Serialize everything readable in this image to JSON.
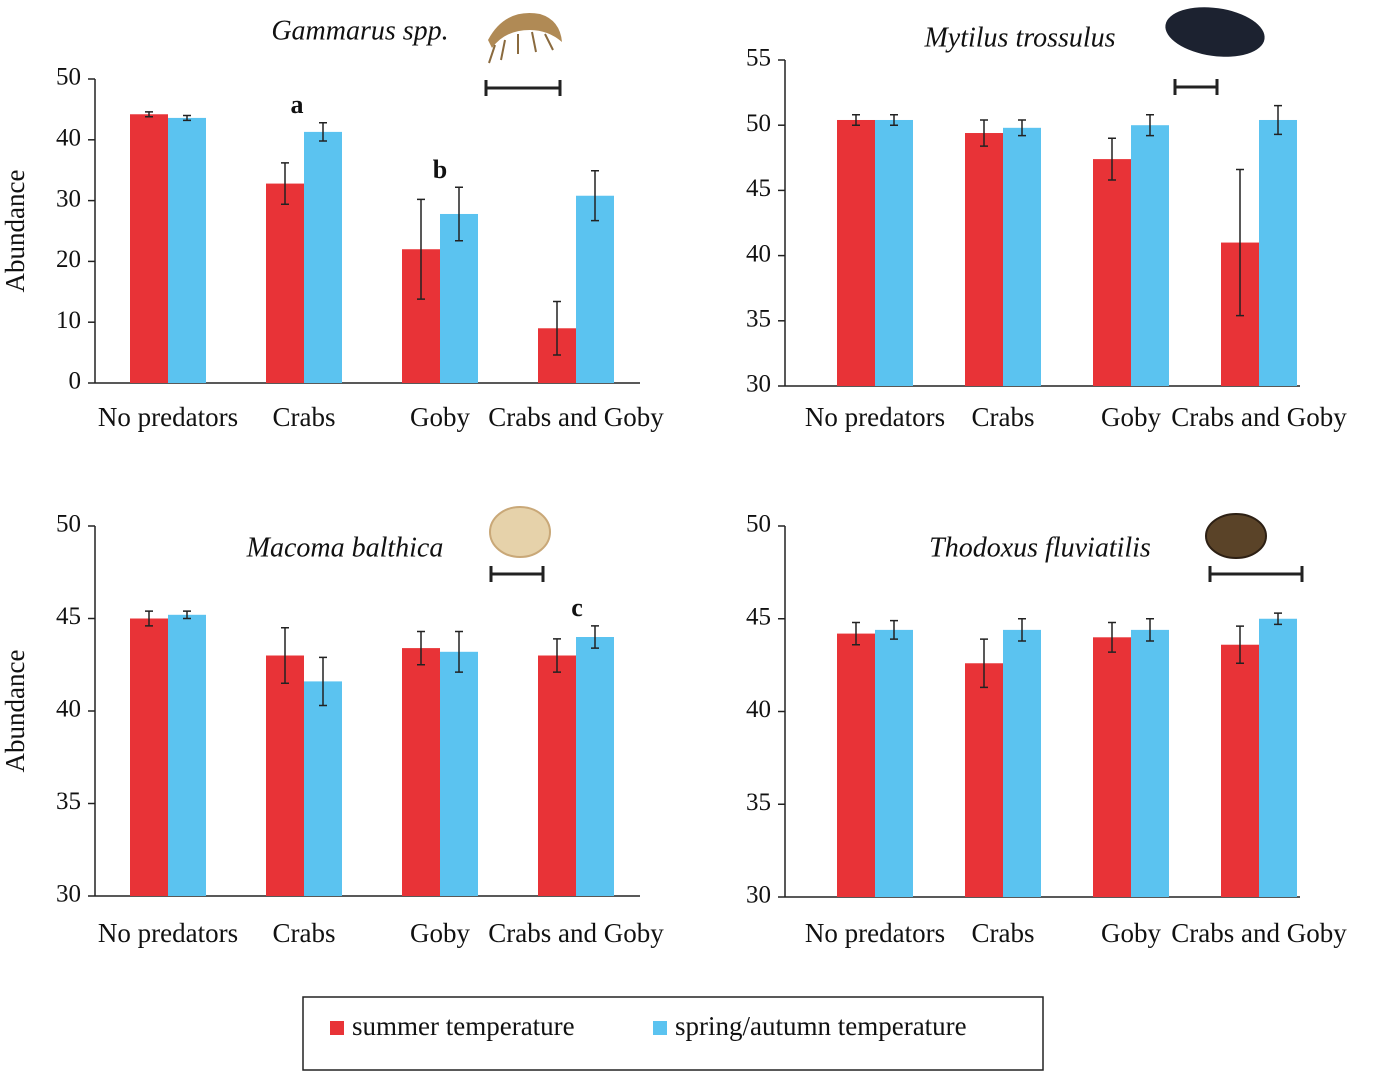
{
  "chart_data": [
    {
      "type": "bar",
      "title": "Gammarus spp.",
      "y_label": "Abundance",
      "categories": [
        "No predators",
        "Crabs",
        "Goby",
        "Crabs and Goby"
      ],
      "ylim": [
        0,
        50
      ],
      "yticks": [
        0,
        10,
        20,
        30,
        40,
        50
      ],
      "annotations": [
        "a",
        "b"
      ],
      "series": [
        {
          "name": "summer temperature",
          "color": "#e83337",
          "values": [
            44.2,
            32.8,
            22.0,
            9.0
          ],
          "errors": [
            0.4,
            3.4,
            8.2,
            4.4
          ]
        },
        {
          "name": "spring/autumn temperature",
          "color": "#5bc3f0",
          "values": [
            43.6,
            41.3,
            27.8,
            30.8
          ],
          "errors": [
            0.4,
            1.5,
            4.4,
            4.1
          ]
        }
      ]
    },
    {
      "type": "bar",
      "title": "Mytilus trossulus",
      "categories": [
        "No predators",
        "Crabs",
        "Goby",
        "Crabs and Goby"
      ],
      "ylim": [
        30,
        55
      ],
      "yticks": [
        30,
        35,
        40,
        45,
        50,
        55
      ],
      "series": [
        {
          "color": "#e83337",
          "values": [
            50.4,
            49.4,
            47.4,
            41.0
          ],
          "errors": [
            0.4,
            1.0,
            1.6,
            5.6
          ]
        },
        {
          "color": "#5bc3f0",
          "values": [
            50.4,
            49.8,
            50.0,
            50.4
          ],
          "errors": [
            0.4,
            0.6,
            0.8,
            1.1
          ]
        }
      ]
    },
    {
      "type": "bar",
      "title": "Macoma balthica",
      "y_label": "Abundance",
      "categories": [
        "No predators",
        "Crabs",
        "Goby",
        "Crabs and Goby"
      ],
      "ylim": [
        30,
        50
      ],
      "yticks": [
        30,
        35,
        40,
        45,
        50
      ],
      "annotations": [
        "c"
      ],
      "series": [
        {
          "color": "#e83337",
          "values": [
            45.0,
            43.0,
            43.4,
            43.0
          ],
          "errors": [
            0.4,
            1.5,
            0.9,
            0.9
          ]
        },
        {
          "color": "#5bc3f0",
          "values": [
            45.2,
            41.6,
            43.2,
            44.0
          ],
          "errors": [
            0.2,
            1.3,
            1.1,
            0.6
          ]
        }
      ]
    },
    {
      "type": "bar",
      "title": "Thodoxus fluviatilis",
      "categories": [
        "No predators",
        "Crabs",
        "Goby",
        "Crabs and Goby"
      ],
      "ylim": [
        30,
        50
      ],
      "yticks": [
        30,
        35,
        40,
        45,
        50
      ],
      "series": [
        {
          "color": "#e83337",
          "values": [
            44.2,
            42.6,
            44.0,
            43.6
          ],
          "errors": [
            0.6,
            1.3,
            0.8,
            1.0
          ]
        },
        {
          "color": "#5bc3f0",
          "values": [
            44.4,
            44.4,
            44.4,
            45.0
          ],
          "errors": [
            0.5,
            0.6,
            0.6,
            0.3
          ]
        }
      ]
    }
  ]
}
